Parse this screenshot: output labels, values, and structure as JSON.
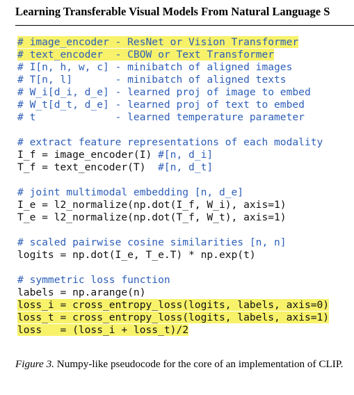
{
  "header": {
    "title": "Learning Transferable Visual Models From Natural Language S"
  },
  "code": {
    "lines": [
      {
        "comment": "# image_encoder - ResNet or Vision Transformer",
        "code": "",
        "highlight": true
      },
      {
        "comment": "# text_encoder  - CBOW or Text Transformer",
        "code": "",
        "highlight": true
      },
      {
        "comment": "# I[n, h, w, c] - minibatch of aligned images",
        "code": "",
        "highlight": false
      },
      {
        "comment": "# T[n, l]       - minibatch of aligned texts",
        "code": "",
        "highlight": false
      },
      {
        "comment": "# W_i[d_i, d_e] - learned proj of image to embed",
        "code": "",
        "highlight": false
      },
      {
        "comment": "# W_t[d_t, d_e] - learned proj of text to embed",
        "code": "",
        "highlight": false
      },
      {
        "comment": "# t             - learned temperature parameter",
        "code": "",
        "highlight": false
      },
      {
        "comment": "",
        "code": "",
        "highlight": false
      },
      {
        "comment": "# extract feature representations of each modality",
        "code": "",
        "highlight": false
      },
      {
        "code": "I_f = image_encoder(I) ",
        "comment": "#[n, d_i]",
        "highlight": false
      },
      {
        "code": "T_f = text_encoder(T)  ",
        "comment": "#[n, d_t]",
        "highlight": false
      },
      {
        "comment": "",
        "code": "",
        "highlight": false
      },
      {
        "comment": "# joint multimodal embedding [n, d_e]",
        "code": "",
        "highlight": false
      },
      {
        "code": "I_e = l2_normalize(np.dot(I_f, W_i), axis=1)",
        "comment": "",
        "highlight": false
      },
      {
        "code": "T_e = l2_normalize(np.dot(T_f, W_t), axis=1)",
        "comment": "",
        "highlight": false
      },
      {
        "comment": "",
        "code": "",
        "highlight": false
      },
      {
        "comment": "# scaled pairwise cosine similarities [n, n]",
        "code": "",
        "highlight": false
      },
      {
        "code": "logits = np.dot(I_e, T_e.T) * np.exp(t)",
        "comment": "",
        "highlight": false
      },
      {
        "comment": "",
        "code": "",
        "highlight": false
      },
      {
        "comment": "# symmetric loss function",
        "code": "",
        "highlight": false
      },
      {
        "code": "labels = np.arange(n)",
        "comment": "",
        "highlight": false
      },
      {
        "code": "loss_i = cross_entropy_loss(logits, labels, axis=0)",
        "comment": "",
        "highlight": true
      },
      {
        "code": "loss_t = cross_entropy_loss(logits, labels, axis=1)",
        "comment": "",
        "highlight": true
      },
      {
        "code": "loss   = (loss_i + loss_t)/2",
        "comment": "",
        "highlight": true
      }
    ]
  },
  "caption": {
    "figure_label": "Figure 3.",
    "text": " Numpy-like pseudocode for the core of an implementation of CLIP."
  },
  "colors": {
    "comment": "#2e5fb8",
    "highlight": "#f7f26a"
  }
}
